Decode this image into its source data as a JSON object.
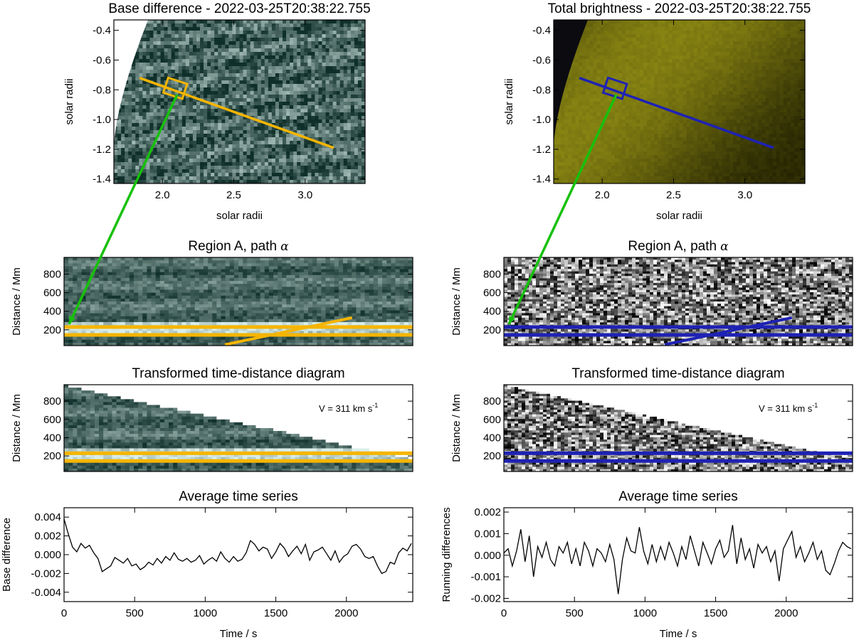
{
  "colors": {
    "teal_dark": "#0f2f2a",
    "teal_light": "#d9eeea",
    "yellow_dark": "#1b1a00",
    "yellow_bright": "#c7c21e",
    "orange": "#f5b500",
    "blue": "#1e22b4",
    "green": "#17c10b"
  },
  "chart_data": [
    {
      "id": "top-left",
      "type": "heatmap",
      "title": "Base difference - 2022-03-25T20:38:22.755",
      "xlabel": "solar radii",
      "ylabel": "solar radii",
      "xlim": [
        1.66,
        3.42
      ],
      "ylim": [
        -1.43,
        -0.33
      ],
      "xticks": [
        "2.0",
        "2.5",
        "3.0"
      ],
      "xtick_values": [
        2.0,
        2.5,
        3.0
      ],
      "yticks": [
        "-0.4",
        "-0.6",
        "-0.8",
        "-1.0",
        "-1.2",
        "-1.4"
      ],
      "ytick_values": [
        -0.4,
        -0.6,
        -0.8,
        -1.0,
        -1.2,
        -1.4
      ],
      "path_alpha": {
        "x": [
          1.84,
          3.2
        ],
        "y": [
          -0.72,
          -1.19
        ],
        "color": "orange"
      },
      "region_box_center": [
        2.09,
        -0.79
      ]
    },
    {
      "id": "top-right",
      "type": "heatmap",
      "title": "Total brightness - 2022-03-25T20:38:22.755",
      "xlabel": "solar radii",
      "ylabel": "solar radii",
      "xlim": [
        1.66,
        3.42
      ],
      "ylim": [
        -1.43,
        -0.33
      ],
      "xticks": [
        "2.0",
        "2.5",
        "3.0"
      ],
      "xtick_values": [
        2.0,
        2.5,
        3.0
      ],
      "yticks": [
        "-0.4",
        "-0.6",
        "-0.8",
        "-1.0",
        "-1.2",
        "-1.4"
      ],
      "ytick_values": [
        -0.4,
        -0.6,
        -0.8,
        -1.0,
        -1.2,
        -1.4
      ],
      "path_alpha": {
        "x": [
          1.84,
          3.2
        ],
        "y": [
          -0.72,
          -1.19
        ],
        "color": "blue"
      },
      "region_box_center": [
        2.09,
        -0.79
      ]
    },
    {
      "id": "row2-left",
      "type": "heatmap",
      "title": "Region A, path",
      "title_symbol": "α",
      "ylabel": "Distance / Mm",
      "xlim": [
        0,
        2470
      ],
      "ylim": [
        30,
        980
      ],
      "yticks": [
        "800",
        "600",
        "400",
        "200"
      ],
      "ytick_values": [
        800,
        600,
        400,
        200
      ],
      "band_lines": [
        230,
        145
      ],
      "slant_line": {
        "x": [
          1140,
          2040
        ],
        "y": [
          40,
          330
        ]
      }
    },
    {
      "id": "row2-right",
      "type": "heatmap",
      "title": "Region A, path",
      "title_symbol": "α",
      "ylabel": "Distance / Mm",
      "xlim": [
        0,
        2470
      ],
      "ylim": [
        30,
        980
      ],
      "yticks": [
        "800",
        "600",
        "400",
        "200"
      ],
      "ytick_values": [
        800,
        600,
        400,
        200
      ],
      "band_lines": [
        230,
        145
      ],
      "slant_line": {
        "x": [
          1140,
          2040
        ],
        "y": [
          40,
          330
        ]
      }
    },
    {
      "id": "row3-left",
      "type": "heatmap",
      "title": "Transformed time-distance diagram",
      "ylabel": "Distance / Mm",
      "xlim": [
        0,
        2470
      ],
      "ylim": [
        30,
        980
      ],
      "yticks": [
        "800",
        "600",
        "400",
        "200"
      ],
      "ytick_values": [
        800,
        600,
        400,
        200
      ],
      "band_lines": [
        230,
        145
      ],
      "velocity_label": "V = 311 km s",
      "velocity_exponent": "-1",
      "velocity_km_s": 311
    },
    {
      "id": "row3-right",
      "type": "heatmap",
      "title": "Transformed time-distance diagram",
      "ylabel": "Distance / Mm",
      "xlim": [
        0,
        2470
      ],
      "ylim": [
        30,
        980
      ],
      "yticks": [
        "800",
        "600",
        "400",
        "200"
      ],
      "ytick_values": [
        800,
        600,
        400,
        200
      ],
      "band_lines": [
        230,
        145
      ],
      "velocity_label": "V = 311 km s",
      "velocity_exponent": "-1",
      "velocity_km_s": 311
    },
    {
      "id": "row4-left",
      "type": "line",
      "title": "Average time series",
      "xlabel": "Time / s",
      "ylabel": "Base difference",
      "xlim": [
        0,
        2470
      ],
      "ylim": [
        -0.005,
        0.005
      ],
      "xticks": [
        "0",
        "500",
        "1000",
        "1500",
        "2000"
      ],
      "xtick_values": [
        0,
        500,
        1000,
        1500,
        2000
      ],
      "yticks": [
        "0.004",
        "0.002",
        "0.000",
        "-0.002",
        "-0.004"
      ],
      "ytick_values": [
        0.004,
        0.002,
        0.0,
        -0.002,
        -0.004
      ],
      "series": [
        {
          "name": "Base difference",
          "x": [
            0,
            30,
            60,
            90,
            120,
            150,
            180,
            210,
            240,
            270,
            300,
            330,
            360,
            390,
            420,
            450,
            480,
            510,
            540,
            570,
            600,
            630,
            660,
            690,
            720,
            750,
            780,
            810,
            840,
            870,
            900,
            930,
            960,
            990,
            1020,
            1050,
            1080,
            1110,
            1140,
            1170,
            1200,
            1230,
            1260,
            1290,
            1320,
            1350,
            1380,
            1410,
            1440,
            1470,
            1500,
            1530,
            1560,
            1590,
            1620,
            1650,
            1680,
            1710,
            1740,
            1770,
            1800,
            1830,
            1860,
            1890,
            1920,
            1950,
            1980,
            2010,
            2040,
            2070,
            2100,
            2130,
            2160,
            2190,
            2220,
            2250,
            2280,
            2310,
            2340,
            2370,
            2400,
            2430,
            2460
          ],
          "values": [
            0.0038,
            0.0022,
            0.0008,
            0.0003,
            0.0012,
            0.0007,
            0.001,
            0.0002,
            -0.0004,
            -0.0018,
            -0.0015,
            -0.0012,
            -0.0003,
            -0.0006,
            -0.0009,
            -0.0004,
            -0.0012,
            -0.001,
            -0.0016,
            -0.0013,
            -0.0008,
            -0.0011,
            -0.0004,
            -0.0009,
            -0.0002,
            -0.0006,
            0.0002,
            -0.0005,
            -0.0007,
            -0.0004,
            -0.0008,
            -0.0006,
            -0.0001,
            -0.001,
            -0.0006,
            -0.0003,
            -0.0007,
            0.0003,
            -0.0004,
            -0.0008,
            -0.0002,
            -0.0007,
            -0.0005,
            0.0002,
            0.0015,
            0.0011,
            0.0004,
            0.0008,
            0.0006,
            -0.0004,
            0.0003,
            0.0012,
            0.0007,
            -0.0002,
            0.0004,
            0.0009,
            0.0001,
            0.0011,
            -0.0006,
            0.0003,
            0.0005,
            0.0008,
            0.0001,
            -0.0006,
            0.0004,
            -0.0008,
            -0.0002,
            0.0001,
            0.0009,
            0.0011,
            0.0006,
            -0.0002,
            -0.0004,
            -0.0002,
            -0.0012,
            -0.002,
            -0.0018,
            -0.0008,
            -0.001,
            0.0002,
            0.0007,
            0.0004,
            0.0012
          ]
        }
      ]
    },
    {
      "id": "row4-right",
      "type": "line",
      "title": "Average time series",
      "xlabel": "Time / s",
      "ylabel": "Running differences",
      "xlim": [
        0,
        2470
      ],
      "ylim": [
        -0.00215,
        0.0022
      ],
      "xticks": [
        "0",
        "500",
        "1000",
        "1500",
        "2000"
      ],
      "xtick_values": [
        0,
        500,
        1000,
        1500,
        2000
      ],
      "yticks": [
        "0.002",
        "0.001",
        "0.000",
        "-0.001",
        "-0.002"
      ],
      "ytick_values": [
        0.002,
        0.001,
        0.0,
        -0.001,
        -0.002
      ],
      "series": [
        {
          "name": "Running differences",
          "x": [
            0,
            30,
            60,
            90,
            120,
            150,
            180,
            210,
            240,
            270,
            300,
            330,
            360,
            390,
            420,
            450,
            480,
            510,
            540,
            570,
            600,
            630,
            660,
            690,
            720,
            750,
            780,
            810,
            840,
            870,
            900,
            930,
            960,
            990,
            1020,
            1050,
            1080,
            1110,
            1140,
            1170,
            1200,
            1230,
            1260,
            1290,
            1320,
            1350,
            1380,
            1410,
            1440,
            1470,
            1500,
            1530,
            1560,
            1590,
            1620,
            1650,
            1680,
            1710,
            1740,
            1770,
            1800,
            1830,
            1860,
            1890,
            1920,
            1950,
            1980,
            2010,
            2040,
            2070,
            2100,
            2130,
            2160,
            2190,
            2220,
            2250,
            2280,
            2310,
            2340,
            2370,
            2400,
            2430,
            2460
          ],
          "values": [
            0.0001,
            0.0003,
            -0.0005,
            0.0002,
            0.0012,
            -0.0003,
            0.0009,
            -0.001,
            0.0004,
            -0.0001,
            0.0006,
            -0.0002,
            -0.0005,
            0.0004,
            0.0001,
            0.0006,
            -0.0004,
            0.0003,
            -0.0005,
            0.0006,
            0.0002,
            -0.0005,
            0.0003,
            0.0001,
            -0.0003,
            0.0005,
            -0.0002,
            -0.0018,
            -0.0002,
            0.0008,
            0.0002,
            0.0001,
            0.0013,
            0.0002,
            -0.0004,
            0.0005,
            -0.0003,
            0.0004,
            -0.0002,
            0.0006,
            0.0001,
            -0.0005,
            0.0004,
            -0.0002,
            0.0009,
            0.0002,
            -0.0005,
            0.0006,
            0.0001,
            -0.0004,
            0.0003,
            0.0007,
            -0.0001,
            0.0002,
            0.0014,
            -0.0004,
            0.0008,
            -0.0002,
            0.0003,
            -0.0006,
            0.0005,
            0.0001,
            0.0004,
            -0.0003,
            0.0002,
            -0.0012,
            0.0003,
            0.0007,
            0.0011,
            -0.0001,
            0.0004,
            -0.0003,
            0.0001,
            0.0006,
            -0.0002,
            0.0002,
            -0.0007,
            -0.0009,
            -0.0004,
            0.0002,
            0.0006,
            0.0004,
            0.0003
          ]
        }
      ]
    }
  ]
}
